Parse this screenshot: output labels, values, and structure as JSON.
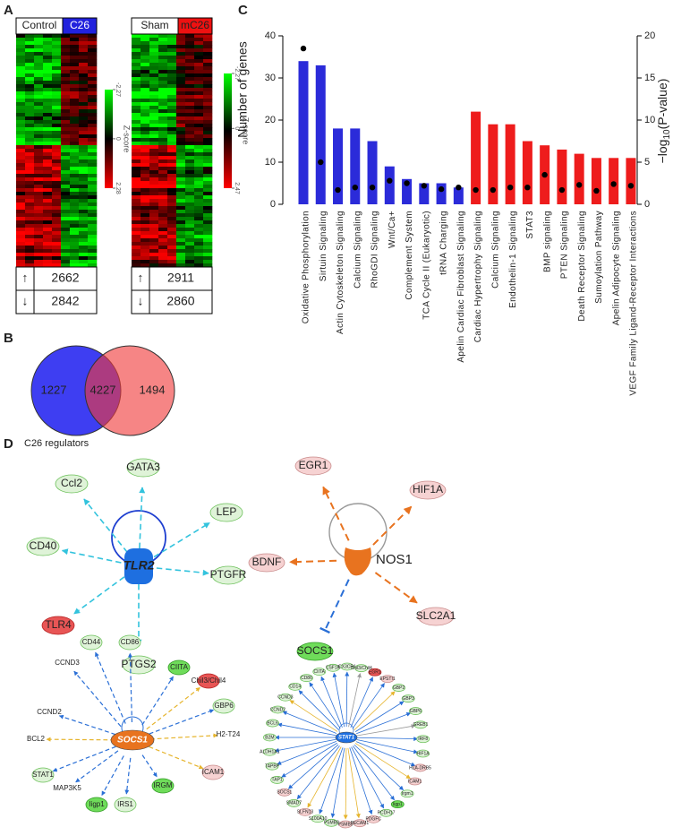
{
  "panels": [
    "A",
    "B",
    "C",
    "D"
  ],
  "heatmaps": [
    {
      "groups": [
        "Control",
        "C26"
      ],
      "ticks": [
        -2.27,
        0,
        2.28
      ],
      "scale_label": "Z-score",
      "rows": [
        {
          "arrow": "↑",
          "count": 2662
        },
        {
          "arrow": "↓",
          "count": 2842
        }
      ]
    },
    {
      "groups": [
        "Sham",
        "mC26"
      ],
      "ticks": [
        -2.27,
        0,
        2.47
      ],
      "scale_label": "Z-score",
      "rows": [
        {
          "arrow": "↑",
          "count": 2911
        },
        {
          "arrow": "↓",
          "count": 2860
        }
      ]
    }
  ],
  "venn": {
    "left_only": 1227,
    "shared": 4227,
    "right_only": 1494
  },
  "chart_data": {
    "type": "bar",
    "ylabel": "Number of genes",
    "y2label": {
      "prefix": "−log",
      "sub": "10",
      "suffix": "(P-value)"
    },
    "categories": [
      "Oxidative Phosphorylation",
      "Sirtuin Signaling",
      "Actin Cytoskeleton Signaling",
      "Calcium Signaling",
      "RhoGDI Signaling",
      "Wnt/Ca+",
      "Complement System",
      "TCA Cycle II (Eukaryotic)",
      "tRNA Charging",
      "Apelin Cardiac Fibroblast Signaling",
      "Cardiac Hypertrophy Signaling",
      "Calcium Signaling",
      "Endothelin-1 Signaling",
      "STAT3",
      "BMP signaling",
      "PTEN Signaling",
      "Death Receptor Signaling",
      "Sumoylation Pathway",
      "Apelin Adipocyte Signaling",
      "VEGF Family Ligand-Receptor Interactions"
    ],
    "series": [
      {
        "values": [
          34,
          33,
          18,
          18,
          15,
          9,
          6,
          5,
          5,
          4,
          22,
          19,
          19,
          15,
          14,
          13,
          12,
          11,
          11,
          11
        ],
        "colors": [
          "#2b2bd9",
          "#2b2bd9",
          "#2b2bd9",
          "#2b2bd9",
          "#2b2bd9",
          "#2b2bd9",
          "#2b2bd9",
          "#2b2bd9",
          "#2b2bd9",
          "#2b2bd9",
          "#ee1c1c",
          "#ee1c1c",
          "#ee1c1c",
          "#ee1c1c",
          "#ee1c1c",
          "#ee1c1c",
          "#ee1c1c",
          "#ee1c1c",
          "#ee1c1c",
          "#ee1c1c"
        ]
      },
      {
        "axis": "y2",
        "color": "#000000",
        "values": [
          18.5,
          5,
          1.7,
          2,
          2,
          2.8,
          2.5,
          2.2,
          1.8,
          2,
          1.7,
          1.7,
          2,
          2,
          3.5,
          1.7,
          2.3,
          1.6,
          2.4,
          2.2
        ]
      }
    ],
    "ylim": [
      0,
      40
    ],
    "yticks": [
      0,
      10,
      20,
      30,
      40
    ],
    "y2lim": [
      0,
      20
    ],
    "y2ticks": [
      0,
      5,
      10,
      15,
      20
    ]
  },
  "networks_title": "C26 regulators",
  "networks": [
    {
      "hub": "TLR2",
      "targets": [
        "GATA3",
        "Ccl2",
        "LEP",
        "CD40",
        "PTGFR",
        "TLR4",
        "PTGS2"
      ]
    },
    {
      "hub": "NOS1",
      "targets": [
        "EGR1",
        "HIF1A",
        "BDNF",
        "SLC2A1",
        "SOCS1"
      ]
    },
    {
      "hub": "SOCS1",
      "targets": [
        "CD44",
        "CD86",
        "CIITA",
        "Chil3/Chil4",
        "GBP6",
        "H2-T24",
        "ICAM1",
        "IRGM",
        "IRS1",
        "Iigp1",
        "MAP3K5",
        "STAT1",
        "BCL2",
        "CCND2",
        "CCND3"
      ]
    },
    {
      "hub": "STAT1",
      "targets": [
        "CSF1R",
        "CX3CR1",
        "Chil3/Chil4",
        "EGR1",
        "EPSTI1",
        "GBP2",
        "GBP3",
        "GBP6",
        "GREB1",
        "IRF8",
        "HIF1A",
        "HLA-DRB5",
        "ICAM1",
        "Irgm1",
        "Iigp1",
        "PCDH17",
        "PDGFC",
        "PECAM1",
        "PSMB9",
        "PSMB8",
        "S100A10",
        "SLFN13",
        "SMAD7",
        "SOCS1",
        "TAP1",
        "TAPBP",
        "ALDH1A1",
        "B2M",
        "BCL6",
        "CCND2",
        "CCND3",
        "CD14",
        "CD86",
        "CIITA"
      ]
    }
  ]
}
